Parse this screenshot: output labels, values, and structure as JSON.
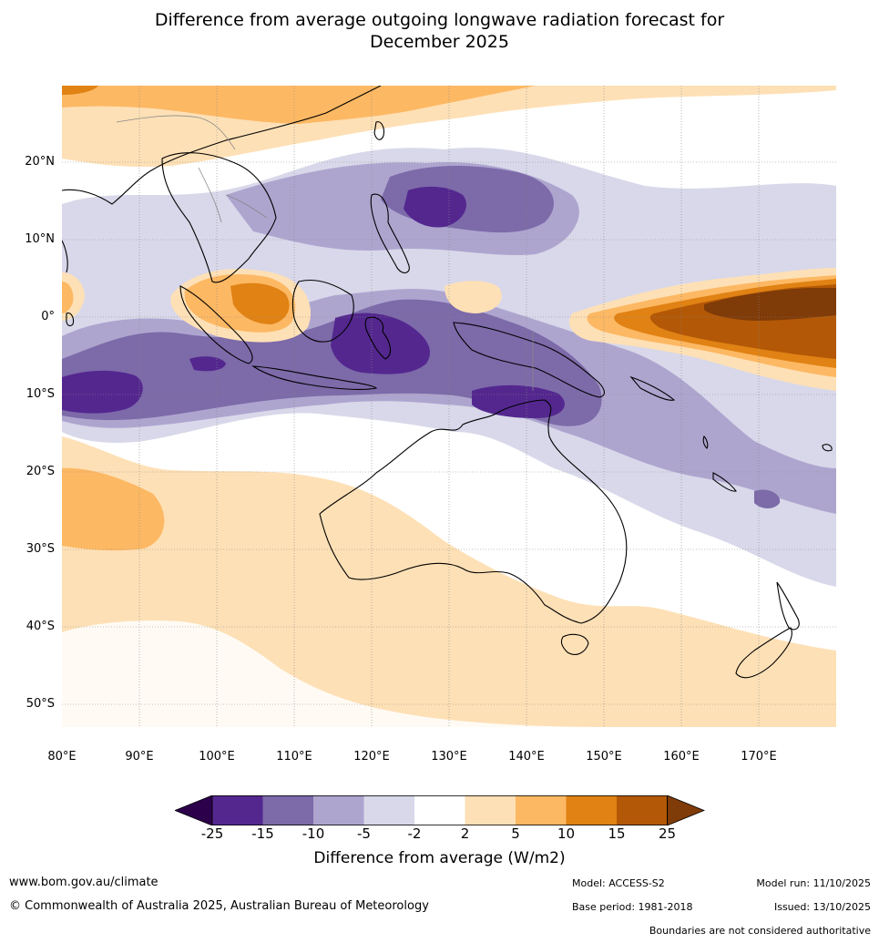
{
  "title": {
    "line1": "Difference from average outgoing longwave radiation forecast for",
    "line2": "December 2025"
  },
  "map": {
    "lat_labels": [
      "20°N",
      "10°N",
      "0°",
      "10°S",
      "20°S",
      "30°S",
      "40°S",
      "50°S"
    ],
    "lon_labels": [
      "80°E",
      "90°E",
      "100°E",
      "110°E",
      "120°E",
      "130°E",
      "140°E",
      "150°E",
      "160°E",
      "170°E"
    ],
    "colors": {
      "neg25": "#54278f",
      "neg15": "#7c6aa9",
      "neg10": "#aea5cf",
      "neg5": "#d8d8ea",
      "neutral": "#ffffff",
      "pos2": "#fee0b6",
      "pos5": "#fdb863",
      "pos10": "#e08214",
      "pos15": "#b35806",
      "pos25": "#7f3b08",
      "below": "#2d004b"
    }
  },
  "colorbar": {
    "ticks": [
      "-25",
      "-15",
      "-10",
      "-5",
      "-2",
      "2",
      "5",
      "10",
      "15",
      "25"
    ],
    "label": "Difference from average (W/m2)"
  },
  "footer": {
    "website": "www.bom.gov.au/climate",
    "copyright": "© Commonwealth of Australia 2025, Australian Bureau of Meteorology",
    "model": "Model: ACCESS-S2",
    "base_period": "Base period: 1981-2018",
    "model_run": "Model run: 11/10/2025",
    "issued": "Issued: 13/10/2025",
    "disclaimer": "Boundaries are not considered authoritative"
  }
}
